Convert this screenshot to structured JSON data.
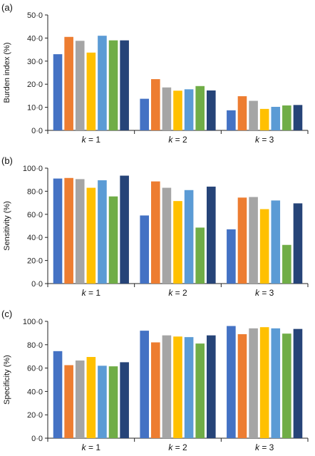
{
  "colors": [
    "#4472C4",
    "#ED7D31",
    "#A5A5A5",
    "#FFC000",
    "#5B9BD5",
    "#70AD47",
    "#264478"
  ],
  "chart_data": [
    {
      "type": "bar",
      "panel_label": "(a)",
      "ylabel": "Burden index (%)",
      "ylim": [
        0,
        50
      ],
      "yticks": [
        "0·0",
        "10·0",
        "20·0",
        "30·0",
        "40·0",
        "50·0"
      ],
      "categories": [
        {
          "prefix": "k",
          "suffix": " = 1"
        },
        {
          "prefix": "k",
          "suffix": " = 2"
        },
        {
          "prefix": "k",
          "suffix": " = 3"
        }
      ],
      "series": [
        {
          "values": [
            33.0,
            13.7,
            8.7
          ]
        },
        {
          "values": [
            40.5,
            22.2,
            14.8
          ]
        },
        {
          "values": [
            38.8,
            18.6,
            12.8
          ]
        },
        {
          "values": [
            33.7,
            17.2,
            9.3
          ]
        },
        {
          "values": [
            41.0,
            17.8,
            10.2
          ]
        },
        {
          "values": [
            39.0,
            19.2,
            10.8
          ]
        },
        {
          "values": [
            39.0,
            17.3,
            11.0
          ]
        }
      ]
    },
    {
      "type": "bar",
      "panel_label": "(b)",
      "ylabel": "Sensitivity (%)",
      "ylim": [
        0,
        100
      ],
      "yticks": [
        "0·0",
        "20·0",
        "40·0",
        "60·0",
        "80·0",
        "100·0"
      ],
      "categories": [
        {
          "prefix": "k",
          "suffix": " = 1"
        },
        {
          "prefix": "k",
          "suffix": " = 2"
        },
        {
          "prefix": "k",
          "suffix": " = 3"
        }
      ],
      "series": [
        {
          "values": [
            91,
            59,
            47
          ]
        },
        {
          "values": [
            91.5,
            88.5,
            74.5
          ]
        },
        {
          "values": [
            90.5,
            83,
            75
          ]
        },
        {
          "values": [
            83,
            71.5,
            64.5
          ]
        },
        {
          "values": [
            89.5,
            81,
            72
          ]
        },
        {
          "values": [
            75.5,
            48.5,
            33.5
          ]
        },
        {
          "values": [
            93.5,
            84,
            69.5
          ]
        }
      ]
    },
    {
      "type": "bar",
      "panel_label": "(c)",
      "ylabel": "Specificity (%)",
      "ylim": [
        0,
        100
      ],
      "yticks": [
        "0·0",
        "20·0",
        "40·0",
        "60·0",
        "80·0",
        "100·0"
      ],
      "categories": [
        {
          "prefix": "k",
          "suffix": " = 1"
        },
        {
          "prefix": "k",
          "suffix": " = 2"
        },
        {
          "prefix": "k",
          "suffix": " = 3"
        }
      ],
      "series": [
        {
          "values": [
            74.5,
            92,
            96
          ]
        },
        {
          "values": [
            62.5,
            82,
            89
          ]
        },
        {
          "values": [
            66.5,
            88,
            94
          ]
        },
        {
          "values": [
            69.5,
            87,
            95
          ]
        },
        {
          "values": [
            62,
            86.5,
            94
          ]
        },
        {
          "values": [
            61.5,
            81,
            89.5
          ]
        },
        {
          "values": [
            65,
            88,
            93.5
          ]
        }
      ]
    }
  ]
}
